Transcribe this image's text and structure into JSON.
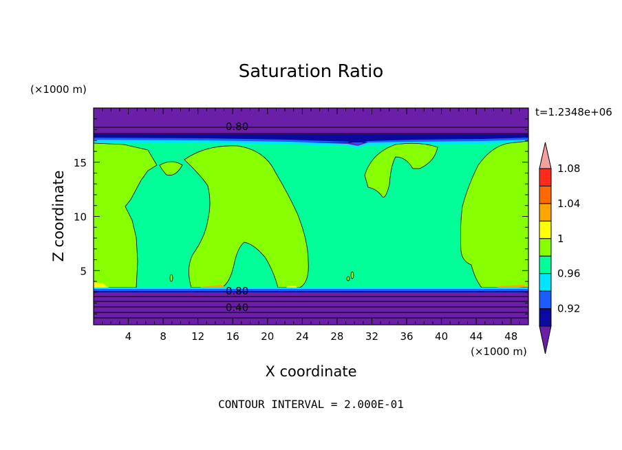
{
  "chart_data": {
    "type": "heatmap",
    "title": "Saturation Ratio",
    "xlabel": "X coordinate",
    "ylabel": "Z coordinate",
    "x_units": "(×1000 m)",
    "y_units": "(×1000 m)",
    "time_label": "t=1.2348e+06",
    "footer": "CONTOUR INTERVAL = 2.000E-01",
    "xlim": [
      0,
      50
    ],
    "ylim": [
      0,
      20
    ],
    "x_ticks": [
      4,
      8,
      12,
      16,
      20,
      24,
      28,
      32,
      36,
      40,
      44,
      48
    ],
    "y_ticks": [
      5,
      10,
      15
    ],
    "contour_labels": [
      {
        "text": "0.80",
        "x": 16.5,
        "z": 18.3
      },
      {
        "text": "0.80",
        "x": 16.5,
        "z": 3.1
      },
      {
        "text": "0.40",
        "x": 16.5,
        "z": 1.6
      }
    ],
    "colorbar": {
      "levels": [
        0.92,
        0.96,
        1,
        1.04,
        1.08
      ],
      "tick_labels": [
        "0.92",
        "0.96",
        "1",
        "1.04",
        "1.08"
      ],
      "colors": [
        "#6b1fa8",
        "#0a0aa0",
        "#1a5cff",
        "#00e5ff",
        "#00ff99",
        "#88ff00",
        "#ffff00",
        "#ffa500",
        "#ff6a00",
        "#ff2a1a",
        "#f4a0a0"
      ]
    },
    "colors": {
      "low_purple": "#6b1fa8",
      "navy": "#0a0aa0",
      "blue": "#1a5cff",
      "cyan": "#00e5ff",
      "saturated_green": "#00ff99",
      "supersaturated_green": "#88ff00",
      "yellow": "#ffff00",
      "orange": "#ffa500",
      "red": "#ff2a1a",
      "pink": "#f4a0a0"
    }
  }
}
